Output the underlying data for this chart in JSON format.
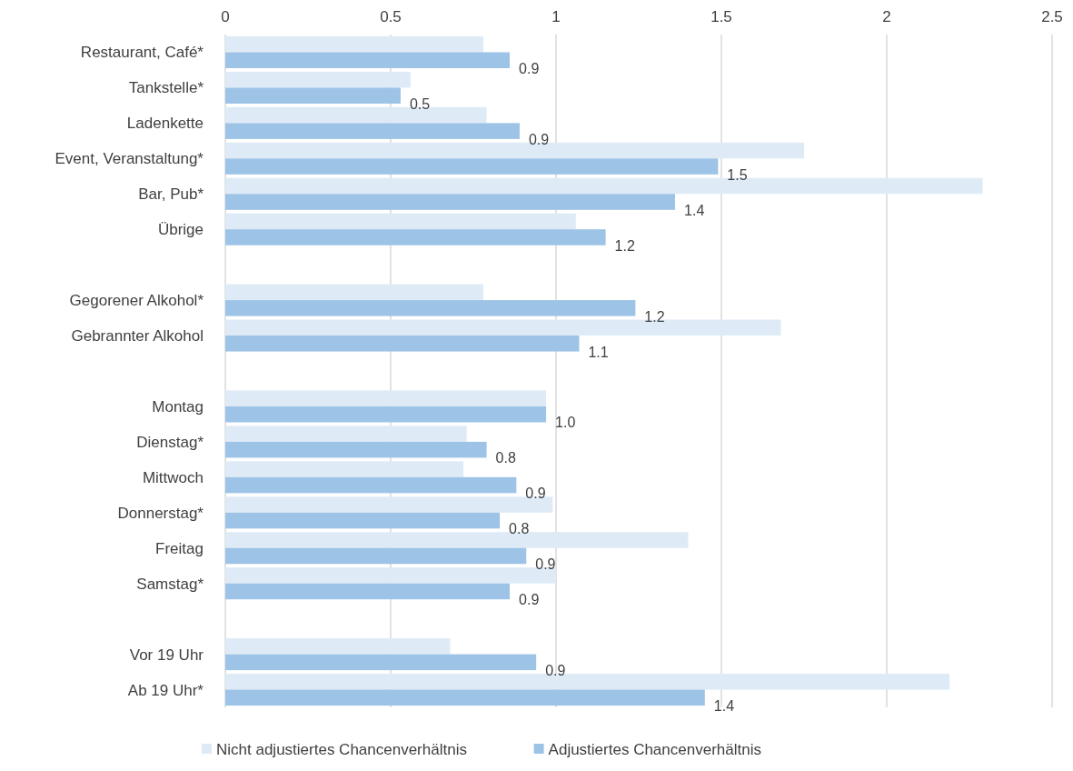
{
  "chart_data": {
    "type": "bar",
    "orientation": "horizontal",
    "categories": [
      "Restaurant, Café*",
      "Tankstelle*",
      "Ladenkette",
      "Event, Veranstaltung*",
      "Bar, Pub*",
      "Übrige",
      null,
      "Gegorener Alkohol*",
      "Gebrannter Alkohol",
      null,
      "Montag",
      "Dienstag*",
      "Mittwoch",
      "Donnerstag*",
      "Freitag",
      "Samstag*",
      null,
      "Vor 19 Uhr",
      "Ab 19 Uhr*"
    ],
    "series": [
      {
        "name": "Nicht adjustiertes Chancenverhältnis",
        "color": "#deebf7",
        "values": [
          0.78,
          0.56,
          0.79,
          1.75,
          2.29,
          1.06,
          null,
          0.78,
          1.68,
          null,
          0.97,
          0.73,
          0.72,
          0.99,
          1.4,
          1.0,
          null,
          0.68,
          2.19
        ]
      },
      {
        "name": "Adjustiertes Chancenverhältnis",
        "color": "#9dc3e6",
        "values": [
          0.86,
          0.53,
          0.89,
          1.49,
          1.36,
          1.15,
          null,
          1.24,
          1.07,
          null,
          0.97,
          0.79,
          0.88,
          0.83,
          0.91,
          0.86,
          null,
          0.94,
          1.45
        ],
        "value_labels": [
          "0.9",
          "0.5",
          "0.9",
          "1.5",
          "1.4",
          "1.2",
          null,
          "1.2",
          "1.1",
          null,
          "1.0",
          "0.8",
          "0.9",
          "0.8",
          "0.9",
          "0.9",
          null,
          "0.9",
          "1.4"
        ]
      }
    ],
    "xlim": [
      0,
      2.5
    ],
    "xticks": [
      0,
      0.5,
      1,
      1.5,
      2,
      2.5
    ],
    "grid": "x",
    "legend": "bottom"
  }
}
